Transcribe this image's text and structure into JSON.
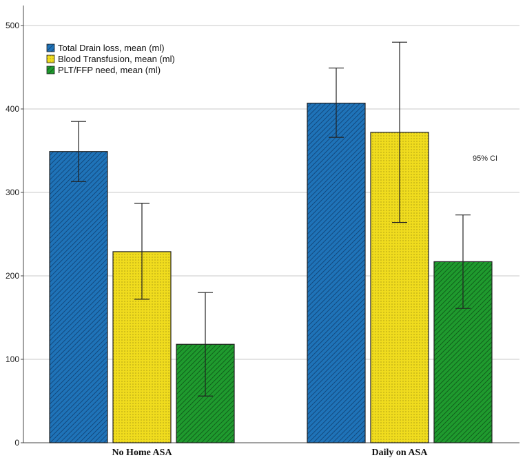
{
  "chart_data": {
    "type": "bar",
    "title": "",
    "xlabel": "",
    "ylabel": "",
    "ylim": [
      0,
      500
    ],
    "yticks": [
      0,
      100,
      200,
      300,
      400,
      500
    ],
    "grid": true,
    "legend_position": "top-left",
    "categories": [
      "No Home ASA",
      "Daily on ASA"
    ],
    "series": [
      {
        "name": "Total Drain loss, mean (ml)",
        "color": "#1f73b8",
        "pattern": "diagonal-hatch",
        "values": [
          349,
          407
        ],
        "ci_low": [
          313,
          366
        ],
        "ci_high": [
          385,
          449
        ]
      },
      {
        "name": "Blood Transfusion, mean (ml)",
        "color": "#f0dc1e",
        "pattern": "dots",
        "values": [
          229,
          372
        ],
        "ci_low": [
          172,
          264
        ],
        "ci_high": [
          287,
          480
        ]
      },
      {
        "name": "PLT/FFP need, mean (ml)",
        "color": "#1f9a2e",
        "pattern": "diagonal-hatch",
        "values": [
          118,
          217
        ],
        "ci_low": [
          56,
          161
        ],
        "ci_high": [
          180,
          273
        ]
      }
    ],
    "annotation": "95% CI"
  }
}
